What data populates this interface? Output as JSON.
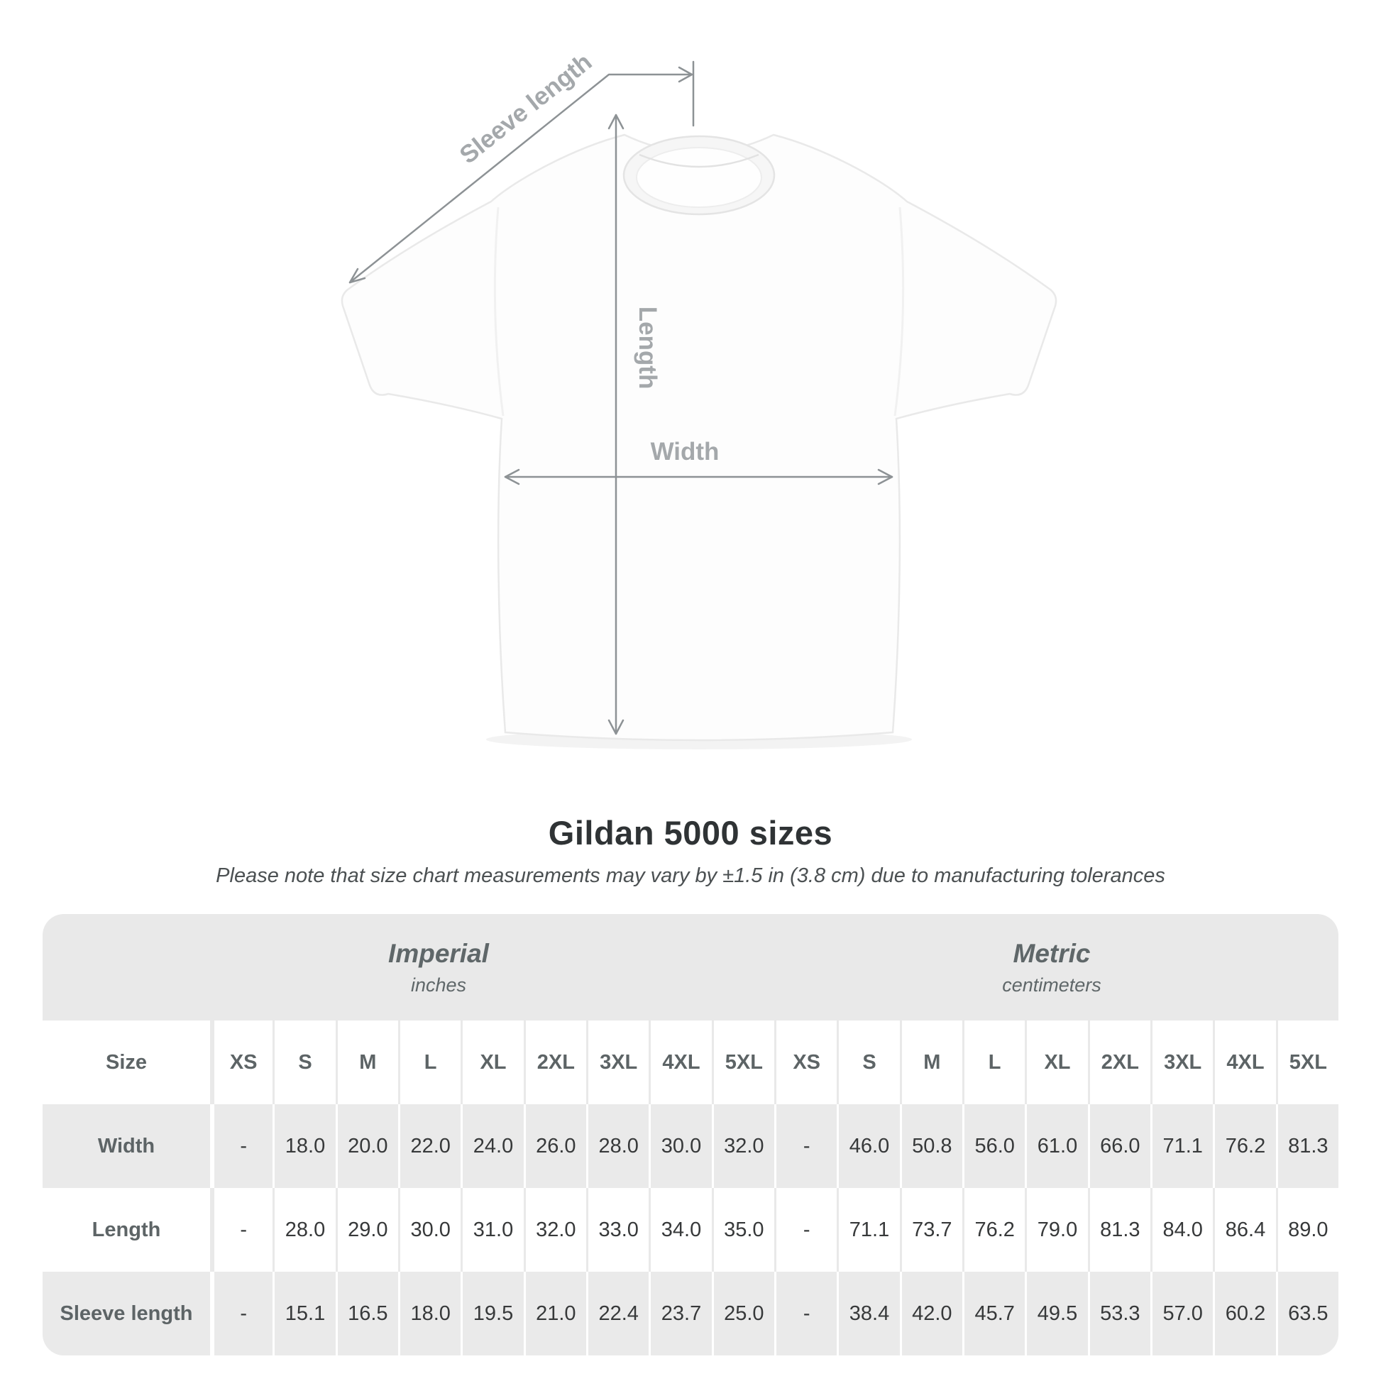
{
  "diagram": {
    "labels": {
      "sleeve_length": "Sleeve length",
      "length": "Length",
      "width": "Width"
    }
  },
  "header": {
    "title": "Gildan 5000 sizes",
    "note": "Please note that size chart measurements may vary by ±1.5 in (3.8 cm) due to manufacturing tolerances"
  },
  "chart_data": {
    "type": "table",
    "title": "Gildan 5000 sizes",
    "corner_label": "Size",
    "sections": [
      {
        "label": "Imperial",
        "unit": "inches"
      },
      {
        "label": "Metric",
        "unit": "centimeters"
      }
    ],
    "sizes": [
      "XS",
      "S",
      "M",
      "L",
      "XL",
      "2XL",
      "3XL",
      "4XL",
      "5XL"
    ],
    "rows": [
      {
        "label": "Width",
        "imperial": [
          "-",
          "18.0",
          "20.0",
          "22.0",
          "24.0",
          "26.0",
          "28.0",
          "30.0",
          "32.0"
        ],
        "metric": [
          "-",
          "46.0",
          "50.8",
          "56.0",
          "61.0",
          "66.0",
          "71.1",
          "76.2",
          "81.3"
        ]
      },
      {
        "label": "Length",
        "imperial": [
          "-",
          "28.0",
          "29.0",
          "30.0",
          "31.0",
          "32.0",
          "33.0",
          "34.0",
          "35.0"
        ],
        "metric": [
          "-",
          "71.1",
          "73.7",
          "76.2",
          "79.0",
          "81.3",
          "84.0",
          "86.4",
          "89.0"
        ]
      },
      {
        "label": "Sleeve length",
        "imperial": [
          "-",
          "15.1",
          "16.5",
          "18.0",
          "19.5",
          "21.0",
          "22.4",
          "23.7",
          "25.0"
        ],
        "metric": [
          "-",
          "38.4",
          "42.0",
          "45.7",
          "49.5",
          "53.3",
          "57.0",
          "60.2",
          "63.5"
        ]
      }
    ]
  },
  "colors": {
    "band_gray": "#e9e9e9",
    "row_gray": "#eaeaea",
    "heading_text": "#5d6466",
    "value_text": "#37393a",
    "diagram_label": "#a4a8ab",
    "arrow": "#8d9295"
  }
}
